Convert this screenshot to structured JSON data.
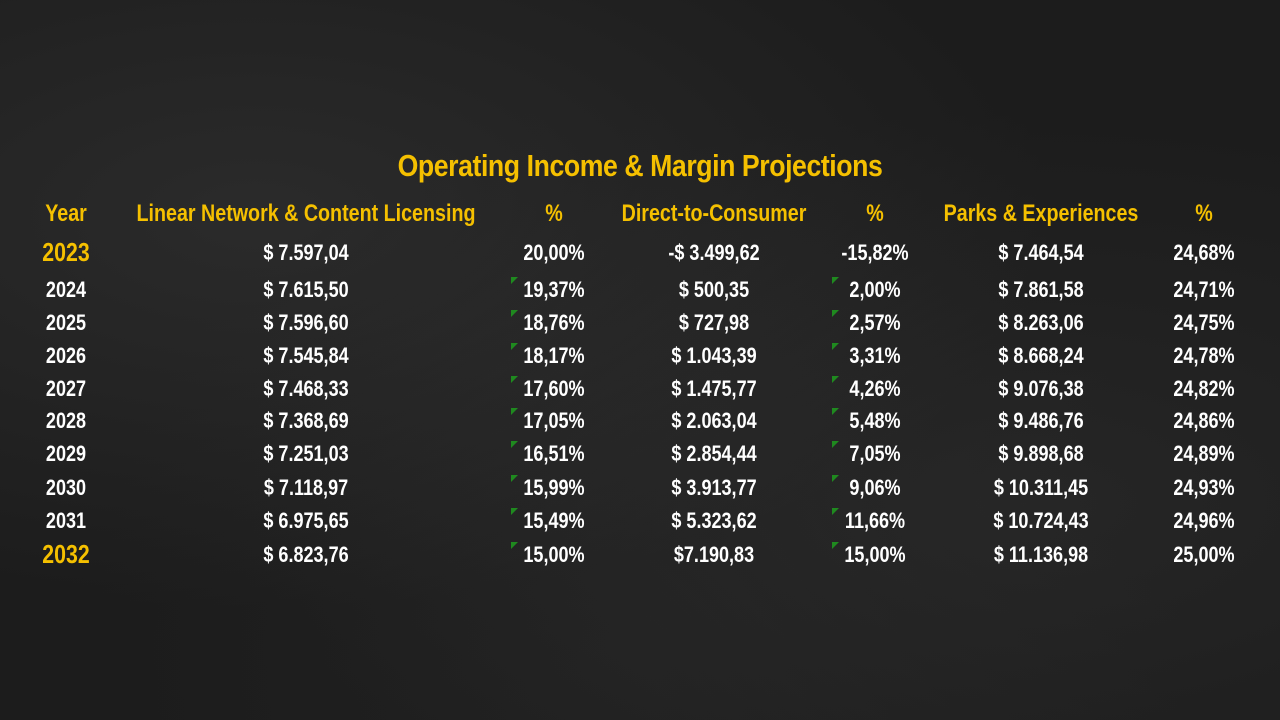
{
  "title": "Operating Income & Margin Projections",
  "headers": [
    "Year",
    "Linear Network & Content Licensing",
    "%",
    "Direct-to-Consumer",
    "%",
    "Parks & Experiences",
    "%"
  ],
  "rows": [
    {
      "year": "2023",
      "linear": "$ 7.597,04",
      "linear_pct": "20,00%",
      "dtc": "-$ 3.499,62",
      "dtc_pct": "-15,82%",
      "parks": "$ 7.464,54",
      "parks_pct": "24,68%"
    },
    {
      "year": "2024",
      "linear": "$ 7.615,50",
      "linear_pct": "19,37%",
      "dtc": "$ 500,35",
      "dtc_pct": "2,00%",
      "parks": "$ 7.861,58",
      "parks_pct": "24,71%"
    },
    {
      "year": "2025",
      "linear": "$ 7.596,60",
      "linear_pct": "18,76%",
      "dtc": "$ 727,98",
      "dtc_pct": "2,57%",
      "parks": "$ 8.263,06",
      "parks_pct": "24,75%"
    },
    {
      "year": "2026",
      "linear": "$ 7.545,84",
      "linear_pct": "18,17%",
      "dtc": "$ 1.043,39",
      "dtc_pct": "3,31%",
      "parks": "$ 8.668,24",
      "parks_pct": "24,78%"
    },
    {
      "year": "2027",
      "linear": "$ 7.468,33",
      "linear_pct": "17,60%",
      "dtc": "$ 1.475,77",
      "dtc_pct": "4,26%",
      "parks": "$ 9.076,38",
      "parks_pct": "24,82%"
    },
    {
      "year": "2028",
      "linear": "$ 7.368,69",
      "linear_pct": "17,05%",
      "dtc": "$ 2.063,04",
      "dtc_pct": "5,48%",
      "parks": "$ 9.486,76",
      "parks_pct": "24,86%"
    },
    {
      "year": "2029",
      "linear": "$ 7.251,03",
      "linear_pct": "16,51%",
      "dtc": "$ 2.854,44",
      "dtc_pct": "7,05%",
      "parks": "$ 9.898,68",
      "parks_pct": "24,89%"
    },
    {
      "year": "2030",
      "linear": "$ 7.118,97",
      "linear_pct": "15,99%",
      "dtc": "$ 3.913,77",
      "dtc_pct": "9,06%",
      "parks": "$ 10.311,45",
      "parks_pct": "24,93%"
    },
    {
      "year": "2031",
      "linear": "$ 6.975,65",
      "linear_pct": "15,49%",
      "dtc": "$ 5.323,62",
      "dtc_pct": "11,66%",
      "parks": "$ 10.724,43",
      "parks_pct": "24,96%"
    },
    {
      "year": "2032",
      "linear": "$ 6.823,76",
      "linear_pct": "15,00%",
      "dtc": "$7.190,83",
      "dtc_pct": "15,00%",
      "parks": "$ 11.136,98",
      "parks_pct": "25,00%"
    }
  ],
  "highlight_years": [
    "2023",
    "2032"
  ],
  "colors": {
    "accent": "#f5c000",
    "text": "#ffffff",
    "background": "#1c1c1c",
    "marker": "#1f8a1f"
  }
}
